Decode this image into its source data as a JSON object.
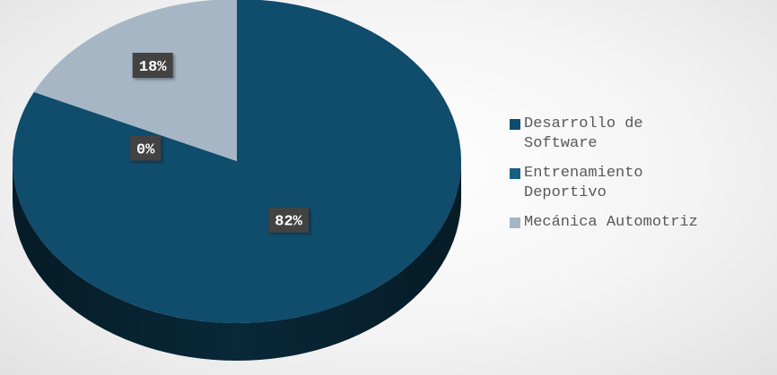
{
  "chart_data": {
    "type": "pie",
    "style": "3d",
    "slices": [
      {
        "label": "Desarrollo de Software",
        "value": 82,
        "data_label": "82%",
        "color": "#104C6B"
      },
      {
        "label": "Entrenamiento Deportivo",
        "value": 0,
        "data_label": "0%",
        "color": "#1A5F80"
      },
      {
        "label": "Mecánica Automotriz",
        "value": 18,
        "data_label": "18%",
        "color": "#A6B6C5"
      }
    ],
    "legend_position": "right",
    "legend": [
      {
        "label": "Desarrollo de Software",
        "color": "#104C6B"
      },
      {
        "label": "Entrenamiento Deportivo",
        "color": "#1A5F80"
      },
      {
        "label": "Mecánica Automotriz",
        "color": "#A6B6C5"
      }
    ]
  }
}
